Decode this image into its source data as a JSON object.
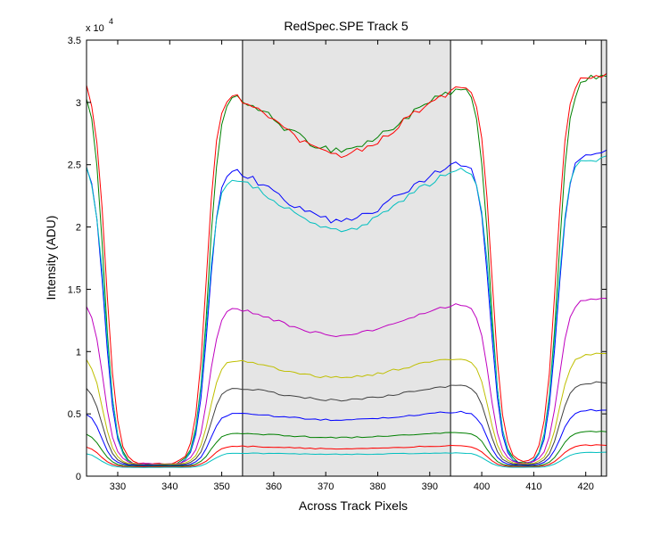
{
  "chart_data": {
    "type": "line",
    "title": "RedSpec.SPE   Track 5",
    "xlabel": "Across Track Pixels",
    "ylabel": "Intensity (ADU)",
    "y_multiplier_label": "x 10",
    "y_multiplier_exponent": "4",
    "xlim": [
      324,
      424
    ],
    "ylim": [
      0,
      35000
    ],
    "x_ticks": [
      330,
      340,
      350,
      360,
      370,
      380,
      390,
      400,
      410,
      420
    ],
    "x_tick_labels": [
      "330",
      "340",
      "350",
      "360",
      "370",
      "380",
      "390",
      "400",
      "410",
      "420"
    ],
    "y_ticks": [
      0,
      5000,
      10000,
      15000,
      20000,
      25000,
      30000,
      35000
    ],
    "y_tick_labels": [
      "0",
      "0.5",
      "1",
      "1.5",
      "2",
      "2.5",
      "3",
      "3.5"
    ],
    "grid": false,
    "shaded_regions": [
      {
        "x_start": 354,
        "x_end": 394,
        "color": "#e5e5e5"
      },
      {
        "x_start": 423,
        "x_end": 424,
        "color": "#e5e5e5"
      }
    ],
    "vertical_lines": [
      354,
      394,
      423
    ],
    "series": [
      {
        "color": "#008000",
        "plateau": 32000,
        "dip": 26200,
        "low": 900,
        "shift": 0.2,
        "noise": 300
      },
      {
        "color": "#ff0000",
        "plateau": 32200,
        "dip": 25800,
        "low": 950,
        "shift": -0.2,
        "noise": 300
      },
      {
        "color": "#0000ff",
        "plateau": 26000,
        "dip": 20500,
        "low": 850,
        "shift": 0.1,
        "noise": 250
      },
      {
        "color": "#00bfbf",
        "plateau": 25500,
        "dip": 19800,
        "low": 800,
        "shift": -0.1,
        "noise": 250
      },
      {
        "color": "#bf00bf",
        "plateau": 14300,
        "dip": 11300,
        "low": 1000,
        "shift": 0.3,
        "noise": 120
      },
      {
        "color": "#bfbf00",
        "plateau": 9800,
        "dip": 7900,
        "low": 950,
        "shift": 0.4,
        "noise": 100
      },
      {
        "color": "#404040",
        "plateau": 7500,
        "dip": 6100,
        "low": 900,
        "shift": 0.5,
        "noise": 90
      },
      {
        "color": "#0000ff",
        "plateau": 5300,
        "dip": 4500,
        "low": 850,
        "shift": 0.6,
        "noise": 70
      },
      {
        "color": "#008000",
        "plateau": 3600,
        "dip": 3100,
        "low": 800,
        "shift": 0.7,
        "noise": 50
      },
      {
        "color": "#ff0000",
        "plateau": 2500,
        "dip": 2200,
        "low": 750,
        "shift": 0.8,
        "noise": 40
      },
      {
        "color": "#00bfbf",
        "plateau": 1900,
        "dip": 1750,
        "low": 700,
        "shift": 0.9,
        "noise": 30
      }
    ]
  }
}
